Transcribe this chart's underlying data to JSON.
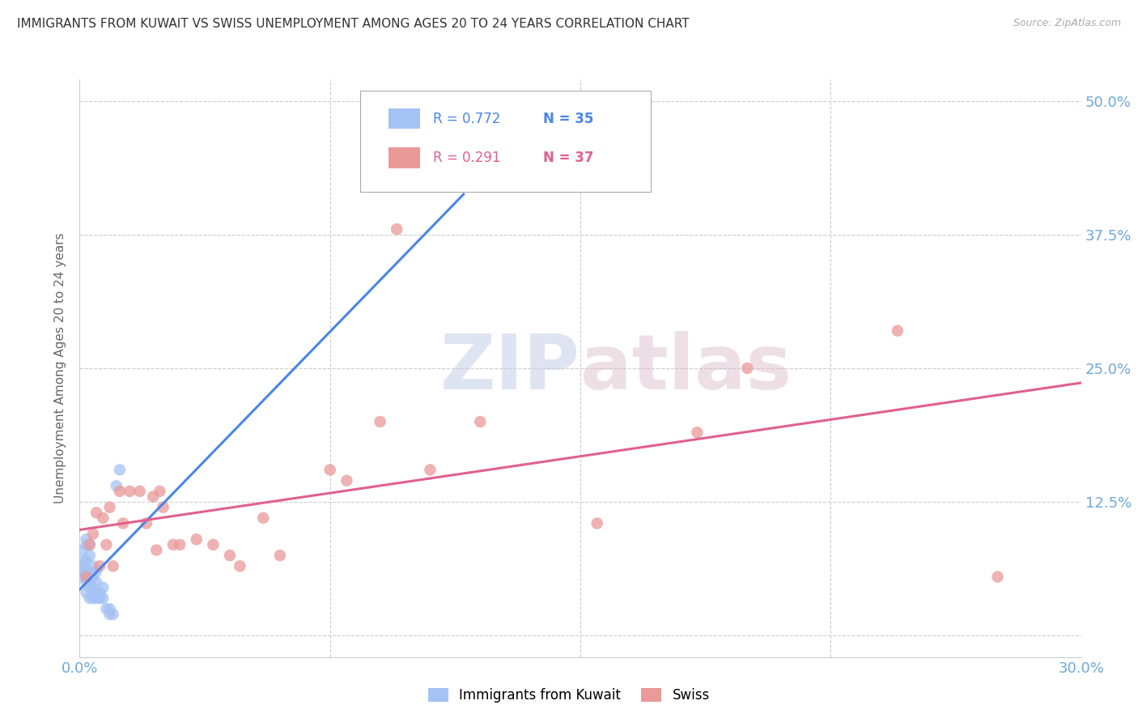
{
  "title": "IMMIGRANTS FROM KUWAIT VS SWISS UNEMPLOYMENT AMONG AGES 20 TO 24 YEARS CORRELATION CHART",
  "source": "Source: ZipAtlas.com",
  "ylabel": "Unemployment Among Ages 20 to 24 years",
  "xlim": [
    0.0,
    0.3
  ],
  "ylim": [
    -0.02,
    0.52
  ],
  "xticks": [
    0.0,
    0.075,
    0.15,
    0.225,
    0.3
  ],
  "xtick_labels": [
    "0.0%",
    "",
    "",
    "",
    "30.0%"
  ],
  "yticks": [
    0.0,
    0.125,
    0.25,
    0.375,
    0.5
  ],
  "ytick_labels_right": [
    "",
    "12.5%",
    "25.0%",
    "37.5%",
    "50.0%"
  ],
  "blue_color": "#a4c2f4",
  "pink_color": "#ea9999",
  "blue_line_color": "#4a86e8",
  "pink_line_color": "#e06090",
  "tick_label_color": "#6fa8dc",
  "legend_R1": "R = 0.772",
  "legend_N1": "N = 35",
  "legend_R2": "R = 0.291",
  "legend_N2": "N = 37",
  "legend_label1": "Immigrants from Kuwait",
  "legend_label2": "Swiss",
  "blue_x": [
    0.001,
    0.001,
    0.001,
    0.001,
    0.001,
    0.002,
    0.002,
    0.002,
    0.002,
    0.002,
    0.002,
    0.003,
    0.003,
    0.003,
    0.003,
    0.003,
    0.004,
    0.004,
    0.004,
    0.004,
    0.005,
    0.005,
    0.005,
    0.005,
    0.006,
    0.006,
    0.007,
    0.007,
    0.008,
    0.009,
    0.009,
    0.01,
    0.011,
    0.012,
    0.115
  ],
  "blue_y": [
    0.055,
    0.06,
    0.065,
    0.07,
    0.08,
    0.04,
    0.05,
    0.06,
    0.07,
    0.085,
    0.09,
    0.035,
    0.045,
    0.06,
    0.075,
    0.085,
    0.035,
    0.045,
    0.055,
    0.065,
    0.035,
    0.04,
    0.05,
    0.06,
    0.035,
    0.04,
    0.035,
    0.045,
    0.025,
    0.02,
    0.025,
    0.02,
    0.14,
    0.155,
    0.42
  ],
  "pink_x": [
    0.002,
    0.003,
    0.004,
    0.005,
    0.006,
    0.007,
    0.008,
    0.009,
    0.01,
    0.012,
    0.013,
    0.015,
    0.018,
    0.02,
    0.022,
    0.023,
    0.024,
    0.025,
    0.028,
    0.03,
    0.035,
    0.04,
    0.045,
    0.048,
    0.055,
    0.06,
    0.075,
    0.08,
    0.09,
    0.095,
    0.105,
    0.12,
    0.155,
    0.185,
    0.2,
    0.245,
    0.275
  ],
  "pink_y": [
    0.055,
    0.085,
    0.095,
    0.115,
    0.065,
    0.11,
    0.085,
    0.12,
    0.065,
    0.135,
    0.105,
    0.135,
    0.135,
    0.105,
    0.13,
    0.08,
    0.135,
    0.12,
    0.085,
    0.085,
    0.09,
    0.085,
    0.075,
    0.065,
    0.11,
    0.075,
    0.155,
    0.145,
    0.2,
    0.38,
    0.155,
    0.2,
    0.105,
    0.19,
    0.25,
    0.285,
    0.055
  ],
  "watermark_zip": "ZIP",
  "watermark_atlas": "atlas",
  "background_color": "#ffffff",
  "grid_color": "#cccccc"
}
